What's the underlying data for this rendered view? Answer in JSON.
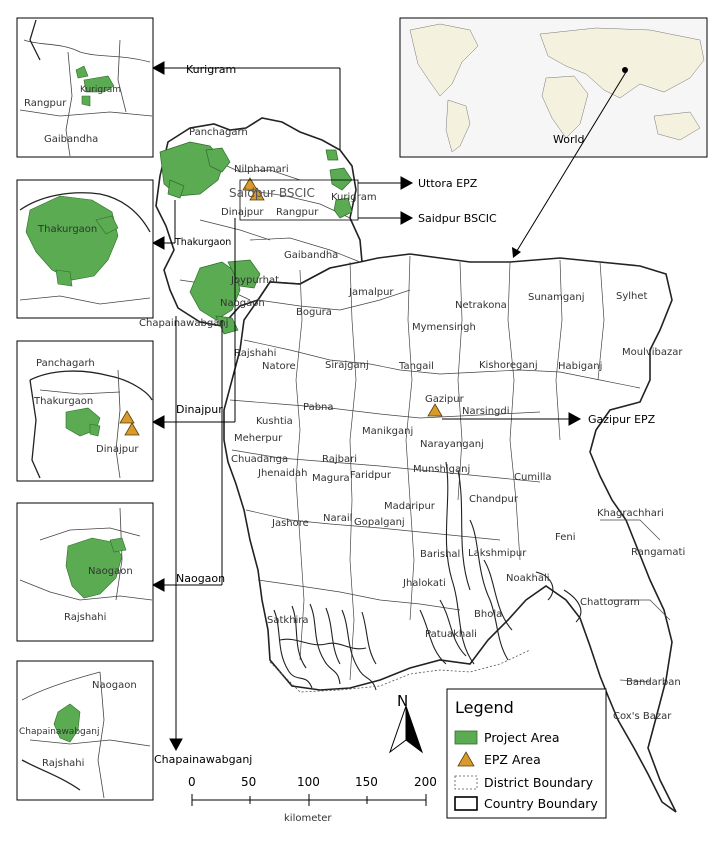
{
  "map": {
    "world_label": "World",
    "callouts": {
      "kurigram": "Kurigram",
      "uttora_epz": "Uttora EPZ",
      "saidpur_bscic": "Saidpur BSCIC",
      "thakurgaon": "Thakurgaon",
      "dinajpur": "Dinajpur",
      "gazipur_epz": "Gazipur EPZ",
      "naogaon": "Naogaon",
      "chapainawabganj": "Chapainawabganj"
    },
    "districts": {
      "panchagarh": "Panchagarh",
      "nilphamari": "Nilphamari",
      "saidpur_bscic": "Saidpur BSCIC",
      "dinajpur": "Dinajpur",
      "rangpur": "Rangpur",
      "kurigram": "Kurigram",
      "gaibandha": "Gaibandha",
      "joypurhat": "Joypurhat",
      "naogaon": "Naogaon",
      "chapainawabganj": "Chapainawabganj",
      "bogura": "Bogura",
      "jamalpur": "Jamalpur",
      "netrakona": "Netrakona",
      "sunamganj": "Sunamganj",
      "sylhet": "Sylhet",
      "rajshahi": "Rajshahi",
      "natore": "Natore",
      "sirajganj": "Sirajganj",
      "tangail": "Tangail",
      "mymensingh": "Mymensingh",
      "kishoreganj": "Kishoreganj",
      "habiganj": "Habiganj",
      "moulvibazar": "Moulvibazar",
      "kushtia": "Kushtia",
      "pabna": "Pabna",
      "gazipur": "Gazipur",
      "narsingdi": "Narsingdi",
      "meherpur": "Meherpur",
      "manikganj": "Manikganj",
      "narayanganj": "Narayanganj",
      "chuadanga": "Chuadanga",
      "rajbari": "Rajbari",
      "jhenaidah": "Jhenaidah",
      "magura": "Magura",
      "faridpur": "Faridpur",
      "munshiganj": "Munshiganj",
      "cumilla": "Cumilla",
      "chandpur": "Chandpur",
      "madaripur": "Madaripur",
      "jashore": "Jashore",
      "narail": "Narail",
      "gopalganj": "Gopalganj",
      "khagrachhari": "Khagrachhari",
      "feni": "Feni",
      "barishal": "Barishal",
      "lakshmipur": "Lakshmipur",
      "rangamati": "Rangamati",
      "noakhali": "Noakhali",
      "jhalokati": "Jhalokati",
      "chattogram": "Chattogram",
      "satkhira": "Satkhira",
      "bhola": "Bhola",
      "patuakhali": "Patuakhali",
      "bandarban": "Bandarban",
      "coxs_bazar": "Cox's Bazar"
    },
    "insets": {
      "kurigram": {
        "a": "Kurigram",
        "b": "Rangpur",
        "c": "Gaibandha"
      },
      "thakurgaon": {
        "a": "Thakurgaon"
      },
      "dinajpur": {
        "a": "Panchagarh",
        "b": "Thakurgaon",
        "c": "Dinajpur"
      },
      "naogaon": {
        "a": "Naogaon",
        "b": "Rajshahi"
      },
      "chapainawabganj": {
        "a": "Naogaon",
        "b": "Chapainawabganj",
        "c": "Rajshahi"
      }
    },
    "north_arrow": "N",
    "legend": {
      "title": "Legend",
      "items": [
        "Project Area",
        "EPZ Area",
        "District Boundary",
        "Country Boundary"
      ]
    },
    "scale": {
      "ticks": [
        "0",
        "50",
        "100",
        "150",
        "200"
      ],
      "unit": "kilometer"
    },
    "colors": {
      "project_area": "#5aab52",
      "project_edge": "#2f6e2a",
      "epz_area": "#d79a2b",
      "boundary": "#222222"
    }
  }
}
